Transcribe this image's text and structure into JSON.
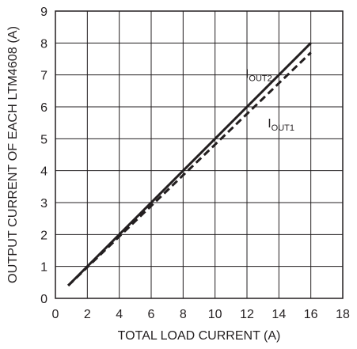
{
  "chart_data": {
    "type": "line",
    "title": "",
    "xlabel": "TOTAL LOAD CURRENT (A)",
    "ylabel": "OUTPUT CURRENT OF EACH LTM4608 (A)",
    "xlim": [
      0,
      18
    ],
    "ylim": [
      0,
      9
    ],
    "xticks": [
      0,
      2,
      4,
      6,
      8,
      10,
      12,
      14,
      16,
      18
    ],
    "yticks": [
      0,
      1,
      2,
      3,
      4,
      5,
      6,
      7,
      8,
      9
    ],
    "grid": true,
    "series": [
      {
        "name": "I",
        "name_subscript": "OUT2",
        "style": "solid",
        "x": [
          0.8,
          16
        ],
        "y": [
          0.4,
          8.0
        ]
      },
      {
        "name": "I",
        "name_subscript": "OUT1",
        "style": "dashed",
        "x": [
          0.8,
          16
        ],
        "y": [
          0.4,
          7.7
        ]
      }
    ],
    "colors": {
      "line": "#231f20",
      "grid": "#231f20"
    }
  }
}
